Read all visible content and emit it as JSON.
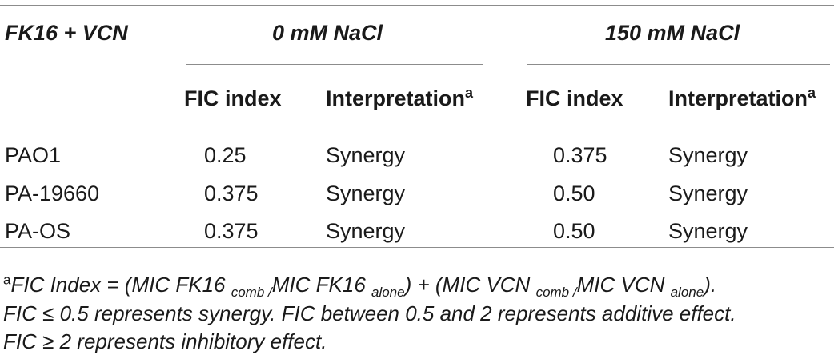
{
  "table": {
    "corner_label": "FK16 + VCN",
    "groups": [
      {
        "label": "0 mM NaCl"
      },
      {
        "label": "150 mM NaCl"
      }
    ],
    "subheaders": {
      "fic_index": "FIC index",
      "interpretation": "Interpretation",
      "interpretation_note": "a"
    },
    "rows": [
      {
        "strain": "PAO1",
        "fic0": "0.25",
        "interp0": "Synergy",
        "fic150": "0.375",
        "interp150": "Synergy"
      },
      {
        "strain": "PA-19660",
        "fic0": "0.375",
        "interp0": "Synergy",
        "fic150": "0.50",
        "interp150": "Synergy"
      },
      {
        "strain": "PA-OS",
        "fic0": "0.375",
        "interp0": "Synergy",
        "fic150": "0.50",
        "interp150": "Synergy"
      }
    ]
  },
  "footnote": {
    "marker": "a",
    "line1_a": "FIC Index = (MIC FK16 ",
    "sub_comb": "comb /",
    "line1_b": "MIC FK16 ",
    "sub_alone": "alone",
    "line1_c": ") + (MIC VCN ",
    "line1_d": "MIC VCN ",
    "line1_e": ").",
    "line2": "FIC ≤ 0.5 represents synergy. FIC between 0.5 and 2 represents additive effect.",
    "line3": "FIC ≥ 2 represents inhibitory effect."
  }
}
